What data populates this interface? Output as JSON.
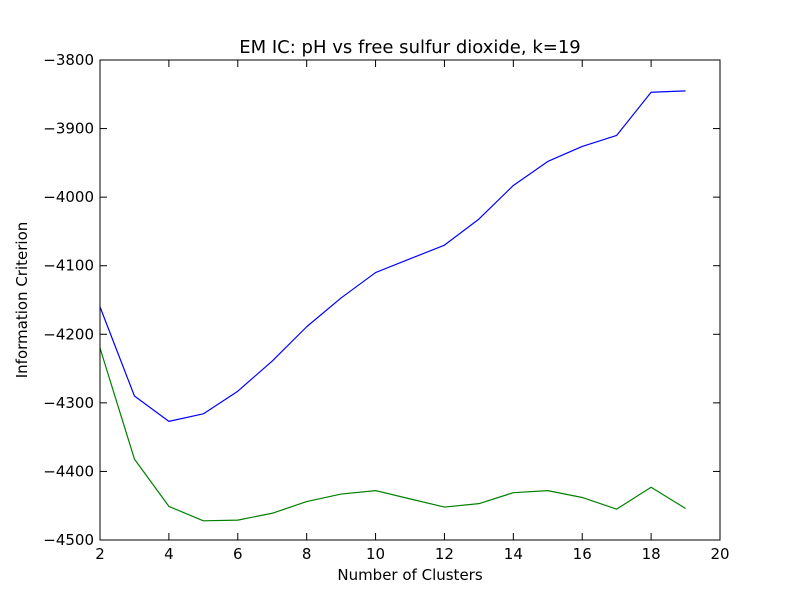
{
  "chart_data": {
    "type": "line",
    "title": "EM IC: pH vs free sulfur dioxide, k=19",
    "xlabel": "Number of Clusters",
    "ylabel": "Information Criterion",
    "xlim": [
      2,
      20
    ],
    "ylim": [
      -4500,
      -3800
    ],
    "xticks": [
      2,
      4,
      6,
      8,
      10,
      12,
      14,
      16,
      18,
      20
    ],
    "yticks": [
      -3800,
      -3900,
      -4000,
      -4100,
      -4200,
      -4300,
      -4400,
      -4500
    ],
    "x": [
      2,
      3,
      4,
      5,
      6,
      7,
      8,
      9,
      10,
      11,
      12,
      13,
      14,
      15,
      16,
      17,
      18,
      19
    ],
    "grid": false,
    "series": [
      {
        "color": "#0000ff",
        "values": [
          -4160,
          -4290,
          -4327,
          -4316,
          -4283,
          -4239,
          -4189,
          -4147,
          -4110,
          -4090,
          -4070,
          -4032,
          -3983,
          -3948,
          -3926,
          -3910,
          -3847,
          -3845
        ]
      },
      {
        "color": "#008000",
        "values": [
          -4220,
          -4382,
          -4451,
          -4472,
          -4471,
          -4461,
          -4444,
          -4433,
          -4428,
          -4440,
          -4452,
          -4447,
          -4431,
          -4428,
          -4438,
          -4455,
          -4423,
          -4454
        ]
      }
    ]
  }
}
